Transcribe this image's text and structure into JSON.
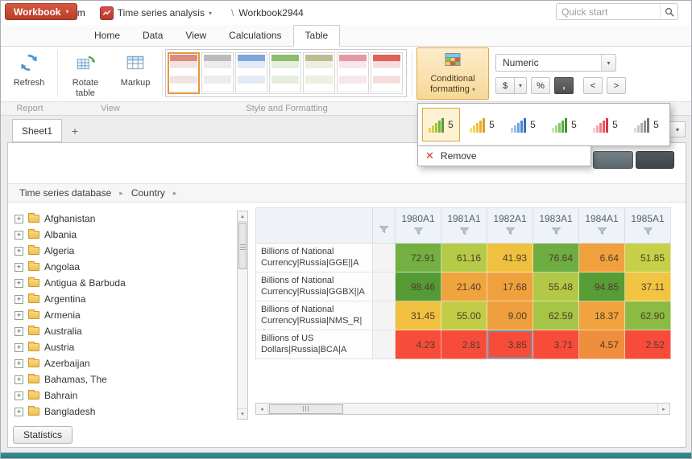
{
  "app": {
    "brand": "Prognoz Platform",
    "module": "Time series analysis",
    "path_sep": "\\",
    "doc": "Workbook2944"
  },
  "icons": {
    "caret_down": "▾",
    "chevron_right": "▸",
    "plus": "+",
    "arrow_up": "▴",
    "arrow_down": "▾",
    "arrow_left": "◂",
    "arrow_right": "▸",
    "close": "✕"
  },
  "tabs": {
    "workbook": "Workbook",
    "items": [
      "Home",
      "Data",
      "View",
      "Calculations",
      "Table"
    ],
    "active": "Table",
    "quick_start_placeholder": "Quick start"
  },
  "ribbon": {
    "buttons": {
      "refresh": "Refresh",
      "rotate_table": "Rotate table",
      "markup": "Markup",
      "conditional_formatting": "Conditional formatting"
    },
    "gallery": {
      "selected_index": 0,
      "thumbs": [
        {
          "accent": "#db8b80",
          "stripe": "#f2e3e1"
        },
        {
          "accent": "#bcbcbc",
          "stripe": "#ececec"
        },
        {
          "accent": "#7fa7d9",
          "stripe": "#e1eaf5"
        },
        {
          "accent": "#8cbd6e",
          "stripe": "#e5f0dc"
        },
        {
          "accent": "#bdbd93",
          "stripe": "#efefdf"
        },
        {
          "accent": "#e39aa6",
          "stripe": "#f8e7ea"
        },
        {
          "accent": "#e06156",
          "stripe": "#f7ddda"
        }
      ]
    },
    "numeric_format": "Numeric",
    "fmt": {
      "dollar": "$",
      "percent": "%",
      "comma": ",",
      "decimal_left": "<",
      "decimal_right": ">"
    },
    "groups": [
      "Report",
      "View",
      "Style and Formatting"
    ]
  },
  "cf_dropdown": {
    "selected_index": 0,
    "remove": "Remove",
    "iconsets": [
      {
        "label": "5",
        "colors": [
          "#f2cf3e",
          "#cdd03f",
          "#a4c43d",
          "#78b23a",
          "#4f9d35"
        ]
      },
      {
        "label": "5",
        "colors": [
          "#f6e387",
          "#f2d258",
          "#eec23d",
          "#e7b02f",
          "#df9e23"
        ]
      },
      {
        "label": "5",
        "colors": [
          "#bcd2ee",
          "#95b9e5",
          "#6f9fda",
          "#4c88d0",
          "#3170c3"
        ]
      },
      {
        "label": "5",
        "colors": [
          "#cbe7ba",
          "#a6d58e",
          "#81c365",
          "#5aac41",
          "#3f9531"
        ]
      },
      {
        "label": "5",
        "colors": [
          "#f9cbd1",
          "#f5a4ae",
          "#f07c8a",
          "#ea5466",
          "#e33449"
        ]
      },
      {
        "label": "5",
        "colors": [
          "#dddddd",
          "#c5c5c5",
          "#acacac",
          "#919191",
          "#767676"
        ]
      }
    ]
  },
  "sheets": {
    "tabs": [
      "Sheet1"
    ],
    "add_label": "+"
  },
  "breadcrumb": {
    "items": [
      "Time series database",
      "Country"
    ]
  },
  "tree": {
    "items": [
      "Afghanistan",
      "Albania",
      "Algeria",
      "Angolaa",
      "Antigua & Barbuda",
      "Argentina",
      "Armenia",
      "Australia",
      "Austria",
      "Azerbaijan",
      "Bahamas, The",
      "Bahrain",
      "Bangladesh"
    ]
  },
  "table": {
    "columns": [
      "1980A1",
      "1981A1",
      "1982A1",
      "1983A1",
      "1984A1",
      "1985A1"
    ],
    "selected": {
      "row": 3,
      "col": 2
    },
    "rows": [
      {
        "label": "Billions of National Currency|Russia|GGE||A",
        "cells": [
          {
            "v": "72.91",
            "c": "#74af42"
          },
          {
            "v": "61.16",
            "c": "#b5ca47"
          },
          {
            "v": "41.93",
            "c": "#f0c140"
          },
          {
            "v": "76.64",
            "c": "#6dad41"
          },
          {
            "v": "6.64",
            "c": "#f0a13e"
          },
          {
            "v": "51.85",
            "c": "#c6d048"
          }
        ]
      },
      {
        "label": "Billions of National Currency|Russia|GGBX||A",
        "cells": [
          {
            "v": "98.46",
            "c": "#549b35"
          },
          {
            "v": "21.40",
            "c": "#f0a43e"
          },
          {
            "v": "17.68",
            "c": "#efa13d"
          },
          {
            "v": "55.48",
            "c": "#b2c846"
          },
          {
            "v": "94.85",
            "c": "#579d36"
          },
          {
            "v": "37.11",
            "c": "#f1c441"
          }
        ]
      },
      {
        "label": "Billions of National Currency|Russia|NMS_R|A",
        "cells": [
          {
            "v": "31.45",
            "c": "#f2c040"
          },
          {
            "v": "55.00",
            "c": "#c2cd47"
          },
          {
            "v": "9.00",
            "c": "#ef9f3d"
          },
          {
            "v": "62.59",
            "c": "#a6c445"
          },
          {
            "v": "18.37",
            "c": "#f0a33e"
          },
          {
            "v": "62.90",
            "c": "#8cbb44"
          }
        ]
      },
      {
        "label": "Billions of US Dollars|Russia|BCA|A",
        "cells": [
          {
            "v": "4.23",
            "c": "#f84c3b"
          },
          {
            "v": "2.81",
            "c": "#f84c3b"
          },
          {
            "v": "3.85",
            "c": "#f84c3b"
          },
          {
            "v": "3.71",
            "c": "#f84c3b"
          },
          {
            "v": "4.57",
            "c": "#ef8e3c"
          },
          {
            "v": "2.52",
            "c": "#f84c3b"
          }
        ]
      }
    ]
  },
  "statistics": {
    "label": "Statistics"
  }
}
